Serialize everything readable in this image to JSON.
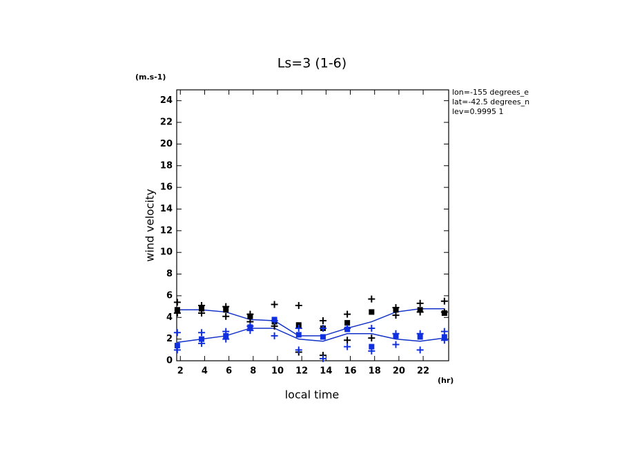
{
  "chart_data": {
    "type": "line",
    "title": "Ls=3 (1-6)",
    "y_unit": "(m.s-1)",
    "y_label": "wind velocity",
    "x_label": "local time",
    "x_unit": "(hr)",
    "annotations": [
      "lon=-155 degrees_e",
      "lat=-42.5 degrees_n",
      "lev=0.9995 1"
    ],
    "x": [
      1.75,
      3.75,
      5.75,
      7.75,
      9.75,
      11.75,
      13.75,
      15.75,
      17.75,
      19.75,
      21.75,
      23.75
    ],
    "xlim": [
      1.7,
      24.1
    ],
    "xticks": [
      2,
      4,
      6,
      8,
      10,
      12,
      14,
      16,
      18,
      20,
      22
    ],
    "ylim": [
      0,
      25
    ],
    "yticks": [
      0,
      2,
      4,
      6,
      8,
      10,
      12,
      14,
      16,
      18,
      20,
      22,
      24
    ],
    "series": [
      {
        "style": "line",
        "color": "#1030c8",
        "values": [
          4.7,
          4.7,
          4.5,
          3.8,
          3.7,
          2.3,
          2.3,
          3.0,
          3.6,
          4.5,
          4.8,
          4.8
        ]
      },
      {
        "style": "line",
        "color": "#1030c8",
        "values": [
          1.7,
          2.0,
          2.3,
          3.0,
          3.0,
          2.0,
          1.8,
          2.5,
          2.5,
          2.0,
          1.8,
          2.1
        ]
      },
      {
        "style": "square",
        "color": "#000000",
        "values": [
          4.7,
          4.8,
          4.7,
          4.1,
          3.6,
          3.3,
          3.0,
          3.5,
          4.5,
          4.7,
          4.7,
          4.4
        ]
      },
      {
        "style": "square",
        "color": "#1030e0",
        "values": [
          1.4,
          2.0,
          2.3,
          3.1,
          3.8,
          2.4,
          2.2,
          2.9,
          1.3,
          2.3,
          2.2,
          2.2
        ]
      },
      {
        "style": "cross",
        "color": "#000000",
        "values": [
          5.4,
          5.1,
          5.0,
          4.3,
          5.2,
          5.1,
          3.7,
          4.3,
          5.7,
          4.9,
          5.3,
          5.5
        ]
      },
      {
        "style": "cross",
        "color": "#000000",
        "values": [
          4.4,
          4.4,
          4.1,
          3.6,
          3.2,
          0.8,
          0.5,
          1.9,
          2.1,
          4.2,
          4.5,
          4.5
        ]
      },
      {
        "style": "cross",
        "color": "#1030e0",
        "values": [
          2.6,
          2.6,
          2.7,
          3.2,
          3.7,
          3.0,
          3.0,
          3.0,
          3.0,
          2.5,
          2.5,
          2.7
        ]
      },
      {
        "style": "cross",
        "color": "#1030e0",
        "values": [
          1.0,
          1.6,
          2.0,
          2.8,
          2.3,
          1.0,
          0.2,
          1.3,
          0.9,
          1.5,
          1.0,
          1.9
        ]
      }
    ]
  }
}
